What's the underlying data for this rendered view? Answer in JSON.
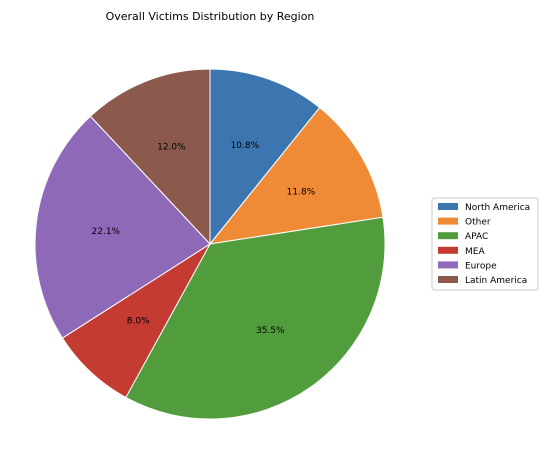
{
  "chart_data": {
    "type": "pie",
    "title": "Overall Victims Distribution by Region",
    "slices": [
      {
        "label": "North America",
        "value": 10.8,
        "color": "#3b76b0"
      },
      {
        "label": "Other",
        "value": 11.8,
        "color": "#ef8a36"
      },
      {
        "label": "APAC",
        "value": 35.5,
        "color": "#519d3e"
      },
      {
        "label": "MEA",
        "value": 8.0,
        "color": "#c43b32"
      },
      {
        "label": "Europe",
        "value": 22.1,
        "color": "#8d69b8"
      },
      {
        "label": "Latin America",
        "value": 12.0,
        "color": "#8b5a4d"
      }
    ],
    "start_angle_deg": 90,
    "direction": "clockwise",
    "label_format": "percent-1dp",
    "legend_position": "right"
  }
}
